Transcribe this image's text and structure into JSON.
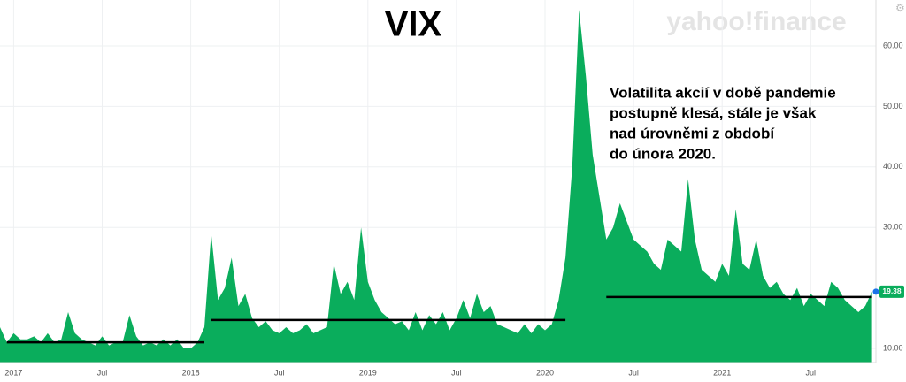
{
  "chart_data": {
    "type": "area",
    "title": "VIX",
    "watermark": "yahoo!finance",
    "annotation": [
      "Volatilita akcií v době pandemie",
      "postupně klesá, stále je však",
      "nad úrovněmi z období",
      "do února 2020."
    ],
    "categories": [
      null,
      null,
      "2017",
      null,
      null,
      null,
      null,
      null,
      null,
      null,
      null,
      null,
      null,
      null,
      null,
      "Jul",
      null,
      null,
      null,
      null,
      null,
      null,
      null,
      null,
      null,
      null,
      null,
      null,
      "2018",
      null,
      null,
      null,
      null,
      null,
      null,
      null,
      null,
      null,
      null,
      null,
      null,
      "Jul",
      null,
      null,
      null,
      null,
      null,
      null,
      null,
      null,
      null,
      null,
      null,
      null,
      "2019",
      null,
      null,
      null,
      null,
      null,
      null,
      null,
      null,
      null,
      null,
      null,
      null,
      "Jul",
      null,
      null,
      null,
      null,
      null,
      null,
      null,
      null,
      null,
      null,
      null,
      null,
      "2020",
      null,
      null,
      null,
      null,
      null,
      null,
      null,
      null,
      null,
      null,
      null,
      null,
      "Jul",
      null,
      null,
      null,
      null,
      null,
      null,
      null,
      null,
      null,
      null,
      null,
      null,
      "2021",
      null,
      null,
      null,
      null,
      null,
      null,
      null,
      null,
      null,
      null,
      null,
      null,
      "Jul",
      null,
      null,
      null,
      null,
      null,
      null,
      null,
      null,
      null
    ],
    "series": [
      {
        "name": "VIX",
        "color": "#0aad5c",
        "values": [
          13.5,
          11,
          12.5,
          11.5,
          11.5,
          12,
          11,
          12.5,
          11,
          11.5,
          16,
          12.5,
          11.5,
          11,
          10.5,
          12,
          10.5,
          11,
          11,
          15.5,
          12,
          10.5,
          11,
          10.5,
          11.5,
          10.5,
          11.5,
          10,
          10,
          11,
          13.5,
          29,
          18,
          20,
          25,
          17,
          19,
          15,
          13.5,
          14.5,
          13,
          12.5,
          13.5,
          12.5,
          13,
          14,
          12.5,
          13,
          13.5,
          24,
          19,
          21,
          18,
          30,
          21,
          18,
          16,
          15,
          14,
          14.5,
          13,
          16,
          13,
          15.5,
          14,
          16,
          13,
          15,
          18,
          15,
          19,
          16,
          17,
          14,
          13.5,
          13,
          12.5,
          14,
          12.5,
          14,
          13,
          14,
          18,
          25,
          40,
          66,
          55,
          42,
          35,
          28,
          30,
          34,
          31,
          28,
          27,
          26,
          24,
          23,
          28,
          27,
          26,
          38,
          28,
          23,
          22,
          21,
          24,
          22,
          33,
          24,
          23,
          28,
          22,
          20,
          21,
          19,
          18,
          20,
          17,
          19,
          18,
          17,
          21,
          20,
          18,
          17,
          16,
          17,
          19.38
        ]
      }
    ],
    "reference_lines": [
      {
        "start": 1,
        "end": 30,
        "value": 11.0
      },
      {
        "start": 31,
        "end": 83,
        "value": 14.7
      },
      {
        "start": 89,
        "end": 128,
        "value": 18.5
      }
    ],
    "ylim": [
      7.66,
      67.6
    ],
    "yticks": [
      {
        "value": 10,
        "label": "10.00"
      },
      {
        "value": 30,
        "label": "30.00"
      },
      {
        "value": 40,
        "label": "40.00"
      },
      {
        "value": 50,
        "label": "50.00"
      },
      {
        "value": 60,
        "label": "60.00"
      }
    ],
    "grid": true
  }
}
